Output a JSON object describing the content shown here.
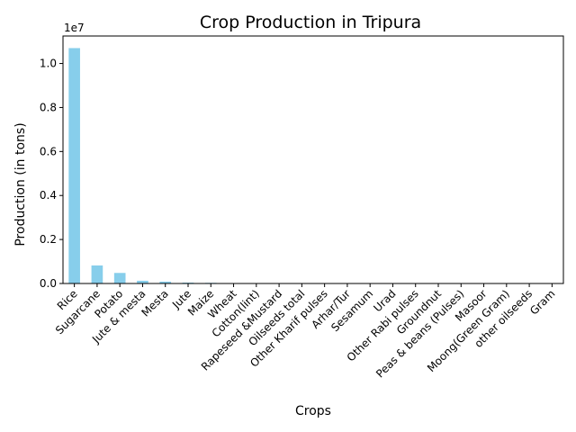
{
  "chart_data": {
    "type": "bar",
    "title": "Crop Production in Tripura",
    "xlabel": "Crops",
    "ylabel": "Production (in tons)",
    "y_offset_label": "1e7",
    "ylim": [
      0,
      11250000
    ],
    "yticks": [
      0,
      2000000,
      4000000,
      6000000,
      8000000,
      10000000
    ],
    "ytick_labels": [
      "0.0",
      "0.2",
      "0.4",
      "0.6",
      "0.8",
      "1.0"
    ],
    "categories": [
      "Rice",
      "Sugarcane",
      "Potato",
      "Jute & mesta",
      "Mesta",
      "Jute",
      "Maize",
      "Wheat",
      "Cotton(lint)",
      "Rapeseed &Mustard",
      "Oilseeds total",
      "Other Kharif pulses",
      "Arhar/Tur",
      "Sesamum",
      "Urad",
      "Other  Rabi pulses",
      "Groundnut",
      "Peas & beans (Pulses)",
      "Masoor",
      "Moong(Green Gram)",
      "other oilseeds",
      "Gram"
    ],
    "values": [
      10700000,
      820000,
      480000,
      125000,
      85000,
      40000,
      30000,
      12000,
      9000,
      8000,
      7000,
      6000,
      5500,
      5000,
      4500,
      4000,
      3500,
      3000,
      2500,
      2000,
      1500,
      1000
    ],
    "bar_color": "#87CEEB",
    "grid": false,
    "legend": "none"
  }
}
